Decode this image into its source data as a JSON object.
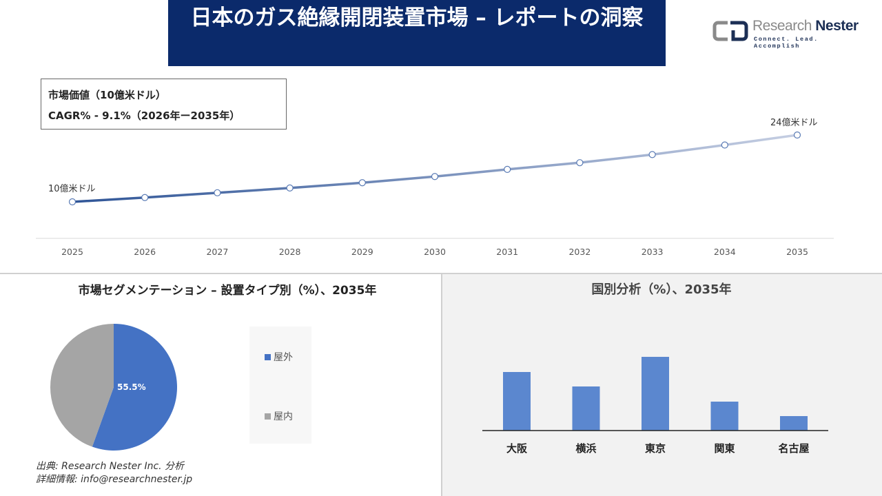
{
  "title": "日本のガス絶縁開閉装置市場 – レポートの洞察",
  "logo": {
    "name_a": "Research ",
    "name_b": "Nester",
    "tagline": "Connect. Lead. Accomplish"
  },
  "infobox": {
    "line1": "市場価値（10億米ドル）",
    "line2": "CAGR% - 9.1%（2026年ー2035年）"
  },
  "segment": {
    "title": "市場セグメンテーション – 設置タイプ別（%）、2035年"
  },
  "source": {
    "line1": "出典: Research Nester Inc. 分析",
    "line2": "詳細情報: info@researchnester.jp"
  },
  "colors": {
    "navy": "#0b2a6b",
    "blue": "#4472c4",
    "gray": "#a5a5a5",
    "bar": "#5b87cf"
  },
  "chart_data": [
    {
      "type": "line",
      "title": "市場価値（10億米ドル）",
      "x": [
        "2025",
        "2026",
        "2027",
        "2028",
        "2029",
        "2030",
        "2031",
        "2032",
        "2033",
        "2034",
        "2035"
      ],
      "values": [
        10,
        10.9,
        11.9,
        12.9,
        14.0,
        15.3,
        16.8,
        18.2,
        19.9,
        21.9,
        24
      ],
      "annotations": {
        "first": "10億米ドル",
        "last": "24億米ドル"
      },
      "grid": false
    },
    {
      "type": "pie",
      "categories": [
        "屋外",
        "屋内"
      ],
      "values": [
        55.5,
        44.5
      ],
      "data_labels": [
        "55.5%",
        ""
      ],
      "legend": "right"
    },
    {
      "type": "bar",
      "title": "国別分析（%）、2035年",
      "categories": [
        "大阪",
        "横浜",
        "東京",
        "関東",
        "名古屋"
      ],
      "values": [
        85,
        64,
        107,
        42,
        21
      ]
    }
  ]
}
